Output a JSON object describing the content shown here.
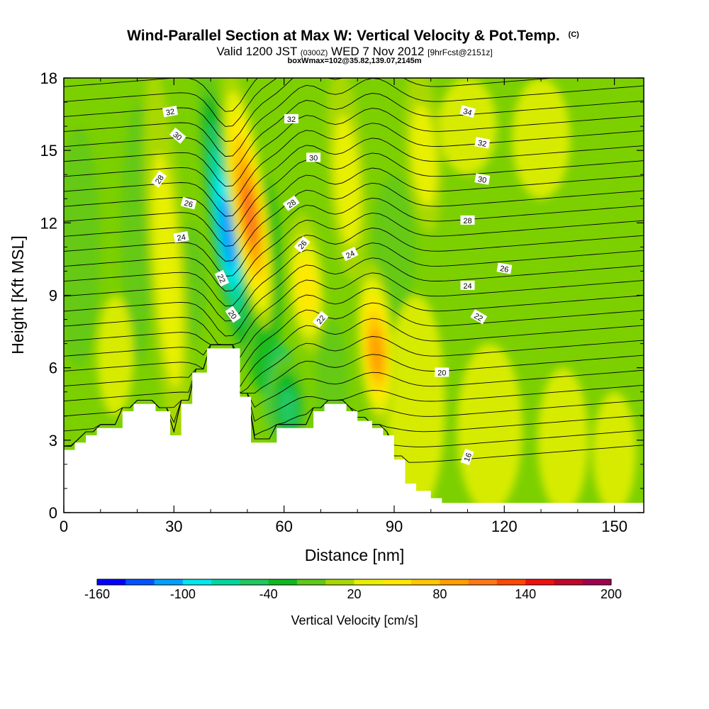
{
  "chart_data": {
    "type": "heatmap",
    "title": "Wind-Parallel Section at Max W: Vertical Velocity & Pot.Temp.",
    "title_unit": "(C)",
    "subtitle": {
      "prefix": "Valid 1200 JST",
      "utc": "(0300Z)",
      "date": "WED 7 Nov 2012",
      "forecast": "[9hrFcst@2151z]"
    },
    "box_info": "boxWmax=102@35.82,139.07,2145m",
    "xlabel": "Distance [nm]",
    "ylabel": "Height [Kft MSL]",
    "xlim": [
      0,
      158
    ],
    "ylim": [
      0,
      18
    ],
    "x_ticks": [
      "0",
      "30",
      "60",
      "90",
      "120",
      "150"
    ],
    "y_ticks": [
      "0",
      "3",
      "6",
      "9",
      "12",
      "15",
      "18"
    ],
    "colorbar": {
      "label": "Vertical Velocity [cm/s]",
      "ticks": [
        "-160",
        "-100",
        "-40",
        "20",
        "80",
        "140",
        "200"
      ],
      "min": -160,
      "max": 200,
      "step": 20,
      "colors": [
        "#0000ff",
        "#0055ff",
        "#00a0ff",
        "#00e8f0",
        "#00d8a0",
        "#20c860",
        "#10b820",
        "#60c818",
        "#a8d800",
        "#e8f000",
        "#ffe800",
        "#ffc800",
        "#ffa000",
        "#ff7818",
        "#ff4800",
        "#f01010",
        "#c00828",
        "#a00050"
      ]
    },
    "velocity_features": [
      {
        "name": "west-updraft",
        "x": 28,
        "y_min": 3,
        "y_max": 18,
        "value": 40
      },
      {
        "name": "downdraft-core",
        "x": 44,
        "y_min": 6.5,
        "y_max": 18,
        "value": -120
      },
      {
        "name": "updraft-core-upper",
        "x": 50,
        "y_min": 8,
        "y_max": 18,
        "value": 120
      },
      {
        "name": "downdraft-lower",
        "x": 61,
        "y_min": 3,
        "y_max": 6,
        "value": -60
      },
      {
        "name": "mid-updraft",
        "x": 66,
        "y_min": 7,
        "y_max": 12,
        "value": 60
      },
      {
        "name": "mid-column-updraft",
        "x": 77,
        "y_min": 10,
        "y_max": 18,
        "value": 40
      },
      {
        "name": "lower-updraft",
        "x": 85,
        "y_min": 4,
        "y_max": 10,
        "value": 100
      },
      {
        "name": "east-updraft",
        "x": 98,
        "y_min": 12,
        "y_max": 18,
        "value": 40
      }
    ],
    "terrain_kft": [
      {
        "x": 0,
        "h": 2.6
      },
      {
        "x": 3,
        "h": 2.9
      },
      {
        "x": 6,
        "h": 3.2
      },
      {
        "x": 9,
        "h": 3.5
      },
      {
        "x": 16,
        "h": 4.2
      },
      {
        "x": 19,
        "h": 4.5
      },
      {
        "x": 25,
        "h": 4.2
      },
      {
        "x": 29,
        "h": 3.2
      },
      {
        "x": 32,
        "h": 4.5
      },
      {
        "x": 35,
        "h": 5.8
      },
      {
        "x": 39,
        "h": 6.8
      },
      {
        "x": 48,
        "h": 4.8
      },
      {
        "x": 51,
        "h": 2.9
      },
      {
        "x": 58,
        "h": 3.5
      },
      {
        "x": 68,
        "h": 4.2
      },
      {
        "x": 71,
        "h": 4.5
      },
      {
        "x": 77,
        "h": 4.2
      },
      {
        "x": 80,
        "h": 3.8
      },
      {
        "x": 84,
        "h": 3.5
      },
      {
        "x": 87,
        "h": 3.2
      },
      {
        "x": 90,
        "h": 2.2
      },
      {
        "x": 93,
        "h": 1.2
      },
      {
        "x": 96,
        "h": 0.9
      },
      {
        "x": 100,
        "h": 0.6
      },
      {
        "x": 103,
        "h": 0.4
      },
      {
        "x": 158,
        "h": 0.4
      }
    ],
    "contours": [
      {
        "value": "16",
        "label_x": 110,
        "label_y": 2.3,
        "label_angle": -70
      },
      {
        "value": "20",
        "label_x": 103,
        "label_y": 5.8,
        "label_angle": 0
      },
      {
        "value": "20",
        "label_x": 46,
        "label_y": 8.2,
        "label_angle": 55
      },
      {
        "value": "22",
        "label_x": 43,
        "label_y": 9.7,
        "label_angle": 65
      },
      {
        "value": "22",
        "label_x": 70,
        "label_y": 8.0,
        "label_angle": -50
      },
      {
        "value": "22",
        "label_x": 113,
        "label_y": 8.1,
        "label_angle": 30
      },
      {
        "value": "24",
        "label_x": 32,
        "label_y": 11.4,
        "label_angle": -10
      },
      {
        "value": "24",
        "label_x": 78,
        "label_y": 10.7,
        "label_angle": -25
      },
      {
        "value": "24",
        "label_x": 110,
        "label_y": 9.4,
        "label_angle": 0
      },
      {
        "value": "26",
        "label_x": 34,
        "label_y": 12.8,
        "label_angle": 15
      },
      {
        "value": "26",
        "label_x": 65,
        "label_y": 11.1,
        "label_angle": -50
      },
      {
        "value": "26",
        "label_x": 120,
        "label_y": 10.1,
        "label_angle": 10
      },
      {
        "value": "28",
        "label_x": 26,
        "label_y": 13.8,
        "label_angle": -55
      },
      {
        "value": "28",
        "label_x": 62,
        "label_y": 12.8,
        "label_angle": -35
      },
      {
        "value": "28",
        "label_x": 110,
        "label_y": 12.1,
        "label_angle": 0
      },
      {
        "value": "30",
        "label_x": 31,
        "label_y": 15.6,
        "label_angle": 40
      },
      {
        "value": "30",
        "label_x": 68,
        "label_y": 14.7,
        "label_angle": 0
      },
      {
        "value": "30",
        "label_x": 114,
        "label_y": 13.8,
        "label_angle": 10
      },
      {
        "value": "32",
        "label_x": 29,
        "label_y": 16.6,
        "label_angle": -10
      },
      {
        "value": "32",
        "label_x": 62,
        "label_y": 16.3,
        "label_angle": 0
      },
      {
        "value": "32",
        "label_x": 114,
        "label_y": 15.3,
        "label_angle": 10
      },
      {
        "value": "34",
        "label_x": 110,
        "label_y": 16.6,
        "label_angle": 15
      }
    ],
    "grid": false,
    "legend": "bottom"
  }
}
